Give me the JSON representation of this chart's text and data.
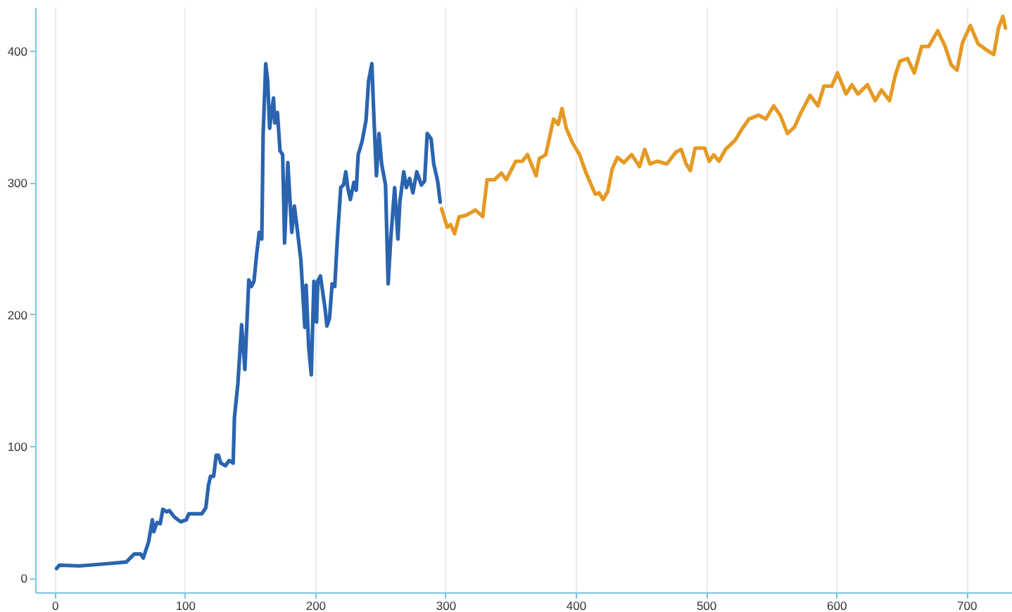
{
  "chart_data": {
    "type": "line",
    "xlim": [
      -15,
      735
    ],
    "ylim": [
      -11,
      433
    ],
    "xticks": [
      0,
      100,
      200,
      300,
      400,
      500,
      600,
      700
    ],
    "yticks": [
      0,
      100,
      200,
      300,
      400
    ],
    "grid": "x",
    "series": [
      {
        "color": "#2a64b0",
        "x": [
          1.4,
          3.6,
          19,
          44,
          55,
          61,
          66,
          68,
          72,
          75,
          76,
          78.6,
          81,
          83,
          86,
          88,
          92,
          96.7,
          101,
          103,
          113,
          116,
          118,
          119.6,
          122,
          124,
          125.7,
          127.5,
          131,
          134,
          137,
          138,
          140.6,
          143.5,
          146,
          149,
          151,
          153,
          155,
          157,
          159,
          160,
          162,
          163.5,
          165,
          166.3,
          168,
          169,
          171,
          173,
          175,
          176.5,
          179,
          182,
          184,
          186,
          189,
          192,
          193,
          195,
          197,
          199,
          201,
          202,
          204,
          207.6,
          209,
          211,
          213,
          215,
          217,
          219.6,
          221.7,
          223.5,
          225,
          227,
          229.7,
          231.5,
          233,
          236,
          239,
          241,
          243.5,
          245,
          247,
          249,
          251,
          254,
          256,
          258,
          261,
          263.5,
          265,
          268,
          270,
          272.5,
          275,
          278,
          281.5,
          284,
          286,
          289,
          291,
          294,
          296
        ],
        "values": [
          7,
          9.6,
          9,
          11,
          12,
          18,
          18,
          15,
          27,
          44,
          35,
          42,
          41,
          52,
          50,
          51,
          46,
          42.5,
          44,
          48.6,
          48.6,
          53,
          70,
          77,
          77,
          93,
          93,
          87,
          85,
          89,
          87,
          122,
          147,
          192,
          158,
          226,
          221,
          225,
          245,
          262,
          257,
          336,
          390,
          377,
          341,
          352,
          364,
          345,
          353,
          324,
          321,
          254,
          315,
          262,
          282,
          266,
          241,
          190,
          222,
          175,
          154,
          225,
          194,
          225,
          229,
          204,
          191,
          197,
          223,
          221,
          257,
          296,
          298,
          308,
          296,
          287,
          300,
          294,
          321,
          331,
          347,
          377,
          390,
          351,
          305,
          337,
          314,
          298,
          223,
          257,
          296,
          257,
          285,
          308,
          296,
          303,
          292,
          308,
          298,
          301,
          337,
          333,
          314,
          301,
          285
        ]
      },
      {
        "color": "#e59a23",
        "x": [
          297,
          301.4,
          304,
          307,
          310.5,
          316,
          319.6,
          323,
          328.6,
          332,
          337.7,
          343,
          346.7,
          354,
          359,
          363,
          369.6,
          372,
          377,
          383,
          386.6,
          389.5,
          392.8,
          397.5,
          403,
          408,
          415,
          418,
          421,
          424.6,
          428,
          432,
          437,
          443,
          449,
          453,
          457,
          462.7,
          470,
          477,
          481,
          484.8,
          488,
          491.7,
          499,
          502.5,
          506,
          510,
          515,
          522.5,
          528,
          533,
          540.6,
          546,
          552,
          557,
          562.6,
          568,
          573,
          580,
          586,
          590.6,
          596.7,
          601,
          607.6,
          612,
          616.7,
          624,
          630,
          634.8,
          641,
          645.6,
          649,
          654.7,
          660,
          665.6,
          671,
          678,
          683.7,
          688.4,
          692.8,
          697,
          703,
          709,
          714.5,
          721,
          724.6,
          728,
          730
        ],
        "values": [
          280,
          266,
          268,
          261,
          274,
          275,
          277,
          279,
          274,
          302,
          302,
          307,
          302,
          316,
          316,
          321,
          305,
          318,
          321,
          348,
          344,
          356,
          341,
          330,
          321,
          307,
          291,
          292,
          287,
          293,
          310,
          319,
          315,
          321,
          312,
          325,
          314,
          316,
          314,
          323,
          325,
          314,
          309,
          326,
          326,
          316,
          321,
          316,
          325,
          332,
          341,
          348,
          351,
          348,
          358,
          351,
          337,
          342,
          353,
          366,
          358,
          373,
          373,
          383,
          367,
          374,
          367,
          374,
          362,
          370,
          362,
          382,
          392,
          394,
          383,
          403,
          403,
          415,
          403,
          389,
          385,
          406,
          419,
          405,
          401,
          397,
          417,
          426,
          417
        ]
      }
    ]
  }
}
